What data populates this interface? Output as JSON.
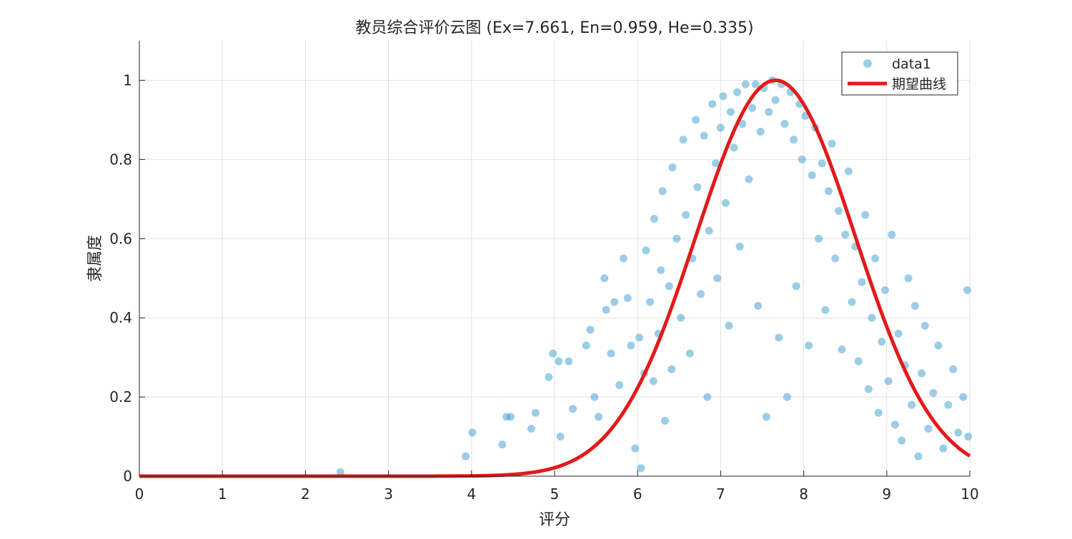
{
  "chart_data": {
    "type": "scatter",
    "title": "教员综合评价云图 (Ex=7.661, En=0.959, He=0.335)",
    "xlabel": "评分",
    "ylabel": "隶属度",
    "xlim": [
      0,
      10
    ],
    "ylim": [
      0,
      1.1
    ],
    "x_ticks": [
      0,
      1,
      2,
      3,
      4,
      5,
      6,
      7,
      8,
      9,
      10
    ],
    "x_tick_labels": [
      "0",
      "1",
      "2",
      "3",
      "4",
      "5",
      "6",
      "7",
      "8",
      "9",
      "10"
    ],
    "y_ticks": [
      0,
      0.2,
      0.4,
      0.6,
      0.8,
      1
    ],
    "y_tick_labels": [
      "0",
      "0.2",
      "0.4",
      "0.6",
      "0.8",
      "1"
    ],
    "grid": true,
    "legend_position": "top-right",
    "cloud_parameters": {
      "Ex": 7.661,
      "En": 0.959,
      "He": 0.335
    },
    "series": [
      {
        "name": "data1",
        "kind": "scatter",
        "color": "#3a9bd0",
        "points": [
          [
            2.42,
            0.01
          ],
          [
            3.93,
            0.05
          ],
          [
            4.01,
            0.11
          ],
          [
            4.37,
            0.08
          ],
          [
            4.42,
            0.15
          ],
          [
            4.47,
            0.15
          ],
          [
            4.72,
            0.12
          ],
          [
            4.77,
            0.16
          ],
          [
            4.93,
            0.25
          ],
          [
            4.98,
            0.31
          ],
          [
            5.05,
            0.29
          ],
          [
            5.07,
            0.1
          ],
          [
            5.17,
            0.29
          ],
          [
            5.22,
            0.17
          ],
          [
            5.38,
            0.33
          ],
          [
            5.43,
            0.37
          ],
          [
            5.48,
            0.2
          ],
          [
            5.53,
            0.15
          ],
          [
            5.6,
            0.5
          ],
          [
            5.62,
            0.42
          ],
          [
            5.68,
            0.31
          ],
          [
            5.72,
            0.44
          ],
          [
            5.78,
            0.23
          ],
          [
            5.83,
            0.55
          ],
          [
            5.88,
            0.45
          ],
          [
            5.92,
            0.33
          ],
          [
            5.97,
            0.07
          ],
          [
            6.02,
            0.35
          ],
          [
            6.04,
            0.02
          ],
          [
            6.08,
            0.26
          ],
          [
            6.1,
            0.57
          ],
          [
            6.15,
            0.44
          ],
          [
            6.19,
            0.24
          ],
          [
            6.2,
            0.65
          ],
          [
            6.25,
            0.36
          ],
          [
            6.28,
            0.52
          ],
          [
            6.3,
            0.72
          ],
          [
            6.33,
            0.14
          ],
          [
            6.38,
            0.48
          ],
          [
            6.41,
            0.27
          ],
          [
            6.42,
            0.78
          ],
          [
            6.47,
            0.6
          ],
          [
            6.52,
            0.4
          ],
          [
            6.55,
            0.85
          ],
          [
            6.58,
            0.66
          ],
          [
            6.63,
            0.31
          ],
          [
            6.66,
            0.55
          ],
          [
            6.7,
            0.9
          ],
          [
            6.72,
            0.73
          ],
          [
            6.76,
            0.46
          ],
          [
            6.8,
            0.86
          ],
          [
            6.84,
            0.2
          ],
          [
            6.86,
            0.62
          ],
          [
            6.9,
            0.94
          ],
          [
            6.94,
            0.79
          ],
          [
            6.96,
            0.5
          ],
          [
            7.0,
            0.88
          ],
          [
            7.03,
            0.96
          ],
          [
            7.06,
            0.69
          ],
          [
            7.1,
            0.38
          ],
          [
            7.12,
            0.92
          ],
          [
            7.16,
            0.83
          ],
          [
            7.2,
            0.97
          ],
          [
            7.23,
            0.58
          ],
          [
            7.26,
            0.89
          ],
          [
            7.3,
            0.99
          ],
          [
            7.34,
            0.75
          ],
          [
            7.38,
            0.93
          ],
          [
            7.42,
            0.99
          ],
          [
            7.45,
            0.43
          ],
          [
            7.48,
            0.87
          ],
          [
            7.52,
            0.98
          ],
          [
            7.55,
            0.15
          ],
          [
            7.58,
            0.92
          ],
          [
            7.62,
            1.0
          ],
          [
            7.66,
            0.95
          ],
          [
            7.7,
            0.35
          ],
          [
            7.73,
            0.99
          ],
          [
            7.77,
            0.89
          ],
          [
            7.8,
            0.2
          ],
          [
            7.84,
            0.97
          ],
          [
            7.88,
            0.85
          ],
          [
            7.91,
            0.48
          ],
          [
            7.95,
            0.94
          ],
          [
            7.98,
            0.8
          ],
          [
            8.02,
            0.91
          ],
          [
            8.06,
            0.33
          ],
          [
            8.1,
            0.76
          ],
          [
            8.14,
            0.88
          ],
          [
            8.18,
            0.6
          ],
          [
            8.22,
            0.79
          ],
          [
            8.26,
            0.42
          ],
          [
            8.3,
            0.72
          ],
          [
            8.34,
            0.84
          ],
          [
            8.38,
            0.55
          ],
          [
            8.42,
            0.67
          ],
          [
            8.46,
            0.32
          ],
          [
            8.5,
            0.61
          ],
          [
            8.54,
            0.77
          ],
          [
            8.58,
            0.44
          ],
          [
            8.62,
            0.58
          ],
          [
            8.66,
            0.29
          ],
          [
            8.7,
            0.49
          ],
          [
            8.74,
            0.66
          ],
          [
            8.78,
            0.22
          ],
          [
            8.82,
            0.4
          ],
          [
            8.86,
            0.55
          ],
          [
            8.9,
            0.16
          ],
          [
            8.94,
            0.34
          ],
          [
            8.98,
            0.47
          ],
          [
            9.02,
            0.24
          ],
          [
            9.06,
            0.61
          ],
          [
            9.1,
            0.13
          ],
          [
            9.14,
            0.36
          ],
          [
            9.18,
            0.09
          ],
          [
            9.22,
            0.28
          ],
          [
            9.26,
            0.5
          ],
          [
            9.3,
            0.18
          ],
          [
            9.34,
            0.43
          ],
          [
            9.38,
            0.05
          ],
          [
            9.42,
            0.26
          ],
          [
            9.46,
            0.38
          ],
          [
            9.5,
            0.12
          ],
          [
            9.56,
            0.21
          ],
          [
            9.62,
            0.33
          ],
          [
            9.68,
            0.07
          ],
          [
            9.74,
            0.18
          ],
          [
            9.8,
            0.27
          ],
          [
            9.86,
            0.11
          ],
          [
            9.92,
            0.2
          ],
          [
            9.97,
            0.47
          ],
          [
            9.98,
            0.1
          ]
        ]
      },
      {
        "name": "期望曲线",
        "kind": "line",
        "color": "#e31a1a",
        "function": "exp(-(x-Ex)^2/(2*En^2))"
      }
    ]
  }
}
